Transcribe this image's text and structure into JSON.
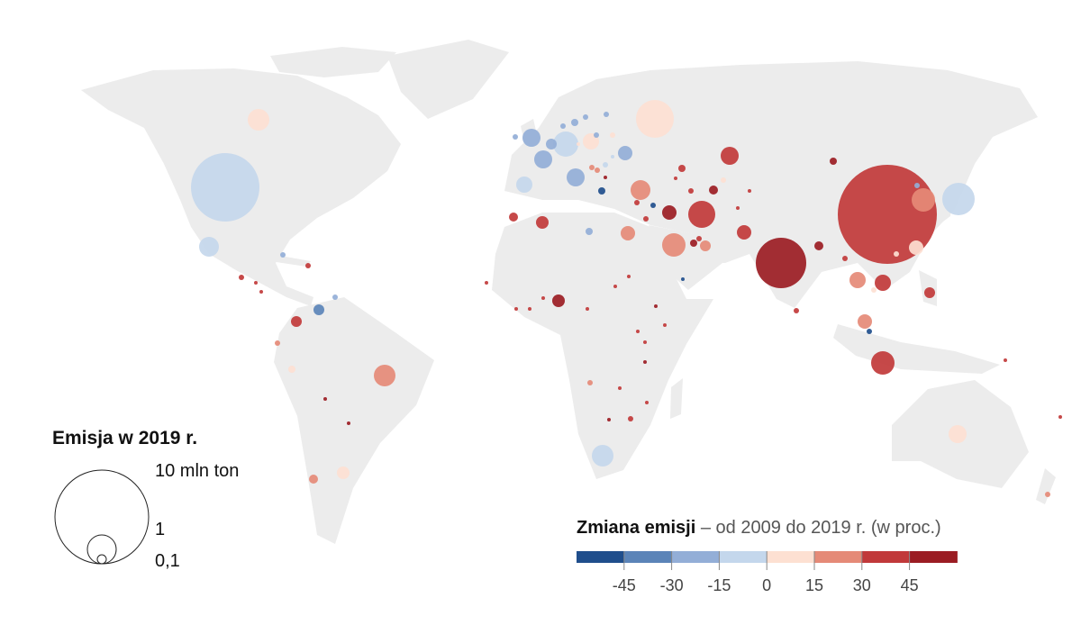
{
  "size_legend": {
    "title": "Emisja w 2019 r.",
    "labels": [
      "10 mln ton",
      "1",
      "0,1"
    ]
  },
  "color_legend": {
    "title": "Zmiana emisji",
    "subtitle": "– od 2009 do 2019 r. (w proc.)",
    "ticks": [
      "-45",
      "-30",
      "-15",
      "0",
      "15",
      "30",
      "45"
    ],
    "colors": [
      "#1f4e8c",
      "#5b84b8",
      "#93aed7",
      "#c4d7ec",
      "#fde0d2",
      "#e58a77",
      "#c1393a",
      "#9b1c23"
    ]
  },
  "land_color": "#ececec"
}
